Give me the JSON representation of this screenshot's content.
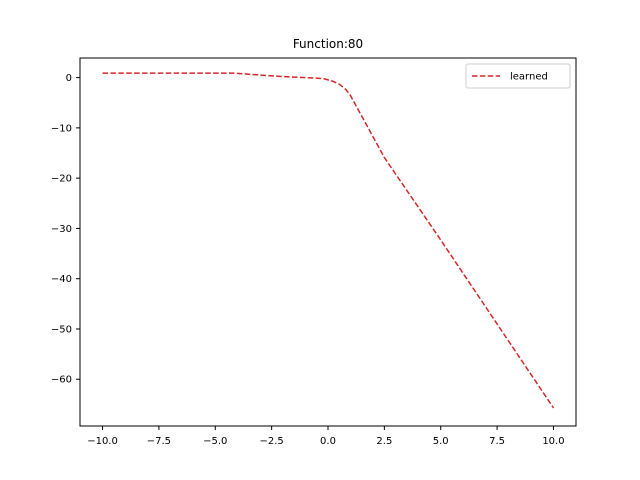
{
  "chart_data": {
    "type": "line",
    "title": "Function:80",
    "xlabel": "",
    "ylabel": "",
    "xlim": [
      -11.0,
      11.0
    ],
    "ylim": [
      -69.3,
      3.9
    ],
    "xticks": [
      -10.0,
      -7.5,
      -5.0,
      -2.5,
      0.0,
      2.5,
      5.0,
      7.5,
      10.0
    ],
    "xtick_labels": [
      "−10.0",
      "−7.5",
      "−5.0",
      "−2.5",
      "0.0",
      "2.5",
      "5.0",
      "7.5",
      "10.0"
    ],
    "yticks": [
      0,
      -10,
      -20,
      -30,
      -40,
      -50,
      -60
    ],
    "ytick_labels": [
      "0",
      "−10",
      "−20",
      "−30",
      "−40",
      "−50",
      "−60"
    ],
    "grid": false,
    "legend_position": "top-right",
    "series": [
      {
        "name": "learned",
        "color": "#d62728",
        "line_style": "dashed",
        "x": [
          -10.0,
          -7.5,
          -5.0,
          -4.2,
          -3.0,
          -2.0,
          -1.0,
          -0.2,
          0.2,
          0.5,
          0.8,
          1.0,
          2.5,
          5.0,
          7.5,
          10.0
        ],
        "y": [
          0.9,
          0.9,
          0.9,
          0.9,
          0.5,
          0.2,
          0.0,
          -0.2,
          -0.7,
          -1.3,
          -2.4,
          -3.6,
          -15.9,
          -32.3,
          -49.0,
          -65.7
        ]
      }
    ]
  }
}
